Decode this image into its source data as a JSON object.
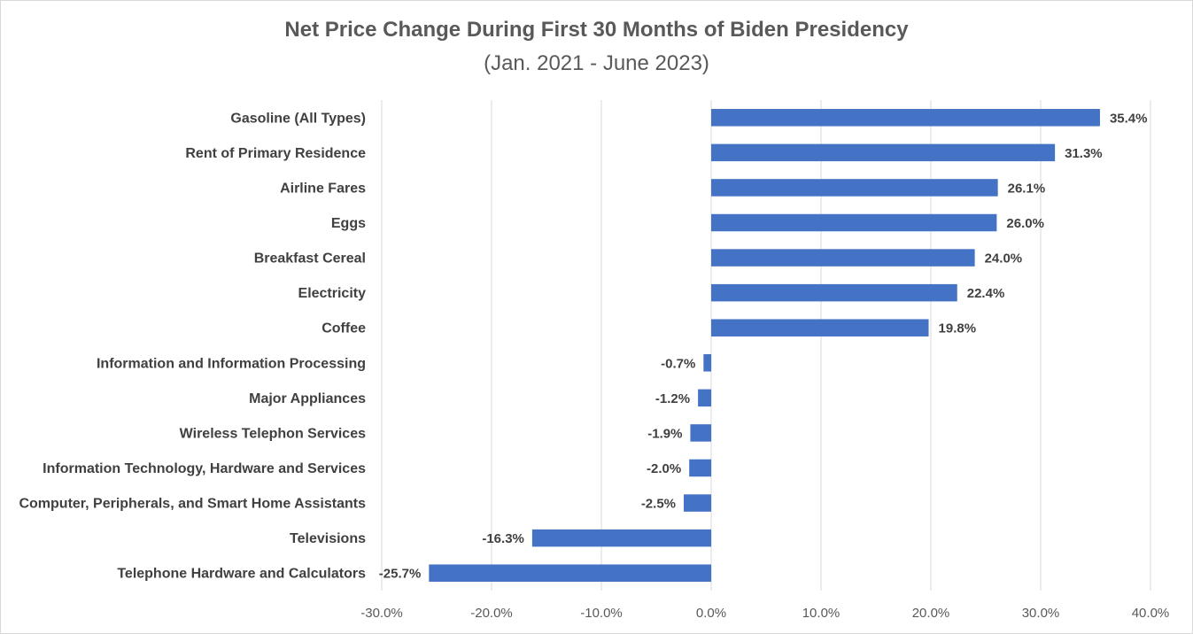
{
  "chart_data": {
    "type": "bar",
    "orientation": "horizontal",
    "title": "Net Price Change During First 30 Months of Biden Presidency",
    "subtitle": "(Jan. 2021 - June 2023)",
    "categories": [
      "Gasoline (All Types)",
      "Rent of Primary Residence",
      "Airline Fares",
      "Eggs",
      "Breakfast Cereal",
      "Electricity",
      "Coffee",
      "Information and Information Processing",
      "Major Appliances",
      "Wireless Telephon Services",
      "Information Technology, Hardware and Services",
      "Computer, Peripherals, and Smart Home Assistants",
      "Televisions",
      "Telephone Hardware and Calculators"
    ],
    "values": [
      35.4,
      31.3,
      26.1,
      26.0,
      24.0,
      22.4,
      19.8,
      -0.7,
      -1.2,
      -1.9,
      -2.0,
      -2.5,
      -16.3,
      -25.7
    ],
    "data_labels": [
      "35.4%",
      "31.3%",
      "26.1%",
      "26.0%",
      "24.0%",
      "22.4%",
      "19.8%",
      "-0.7%",
      "-1.2%",
      "-1.9%",
      "-2.0%",
      "-2.5%",
      "-16.3%",
      "-25.7%"
    ],
    "xlim": [
      -30,
      40
    ],
    "x_ticks": [
      -30,
      -20,
      -10,
      0,
      10,
      20,
      30,
      40
    ],
    "x_tick_labels": [
      "-30.0%",
      "-20.0%",
      "-10.0%",
      "0.0%",
      "10.0%",
      "20.0%",
      "30.0%",
      "40.0%"
    ],
    "xlabel": "",
    "ylabel": "",
    "grid": "vertical",
    "legend": "none",
    "colors": {
      "bar": "#4472c4",
      "grid": "#d9d9d9",
      "text": "#404040",
      "title": "#595959"
    }
  }
}
